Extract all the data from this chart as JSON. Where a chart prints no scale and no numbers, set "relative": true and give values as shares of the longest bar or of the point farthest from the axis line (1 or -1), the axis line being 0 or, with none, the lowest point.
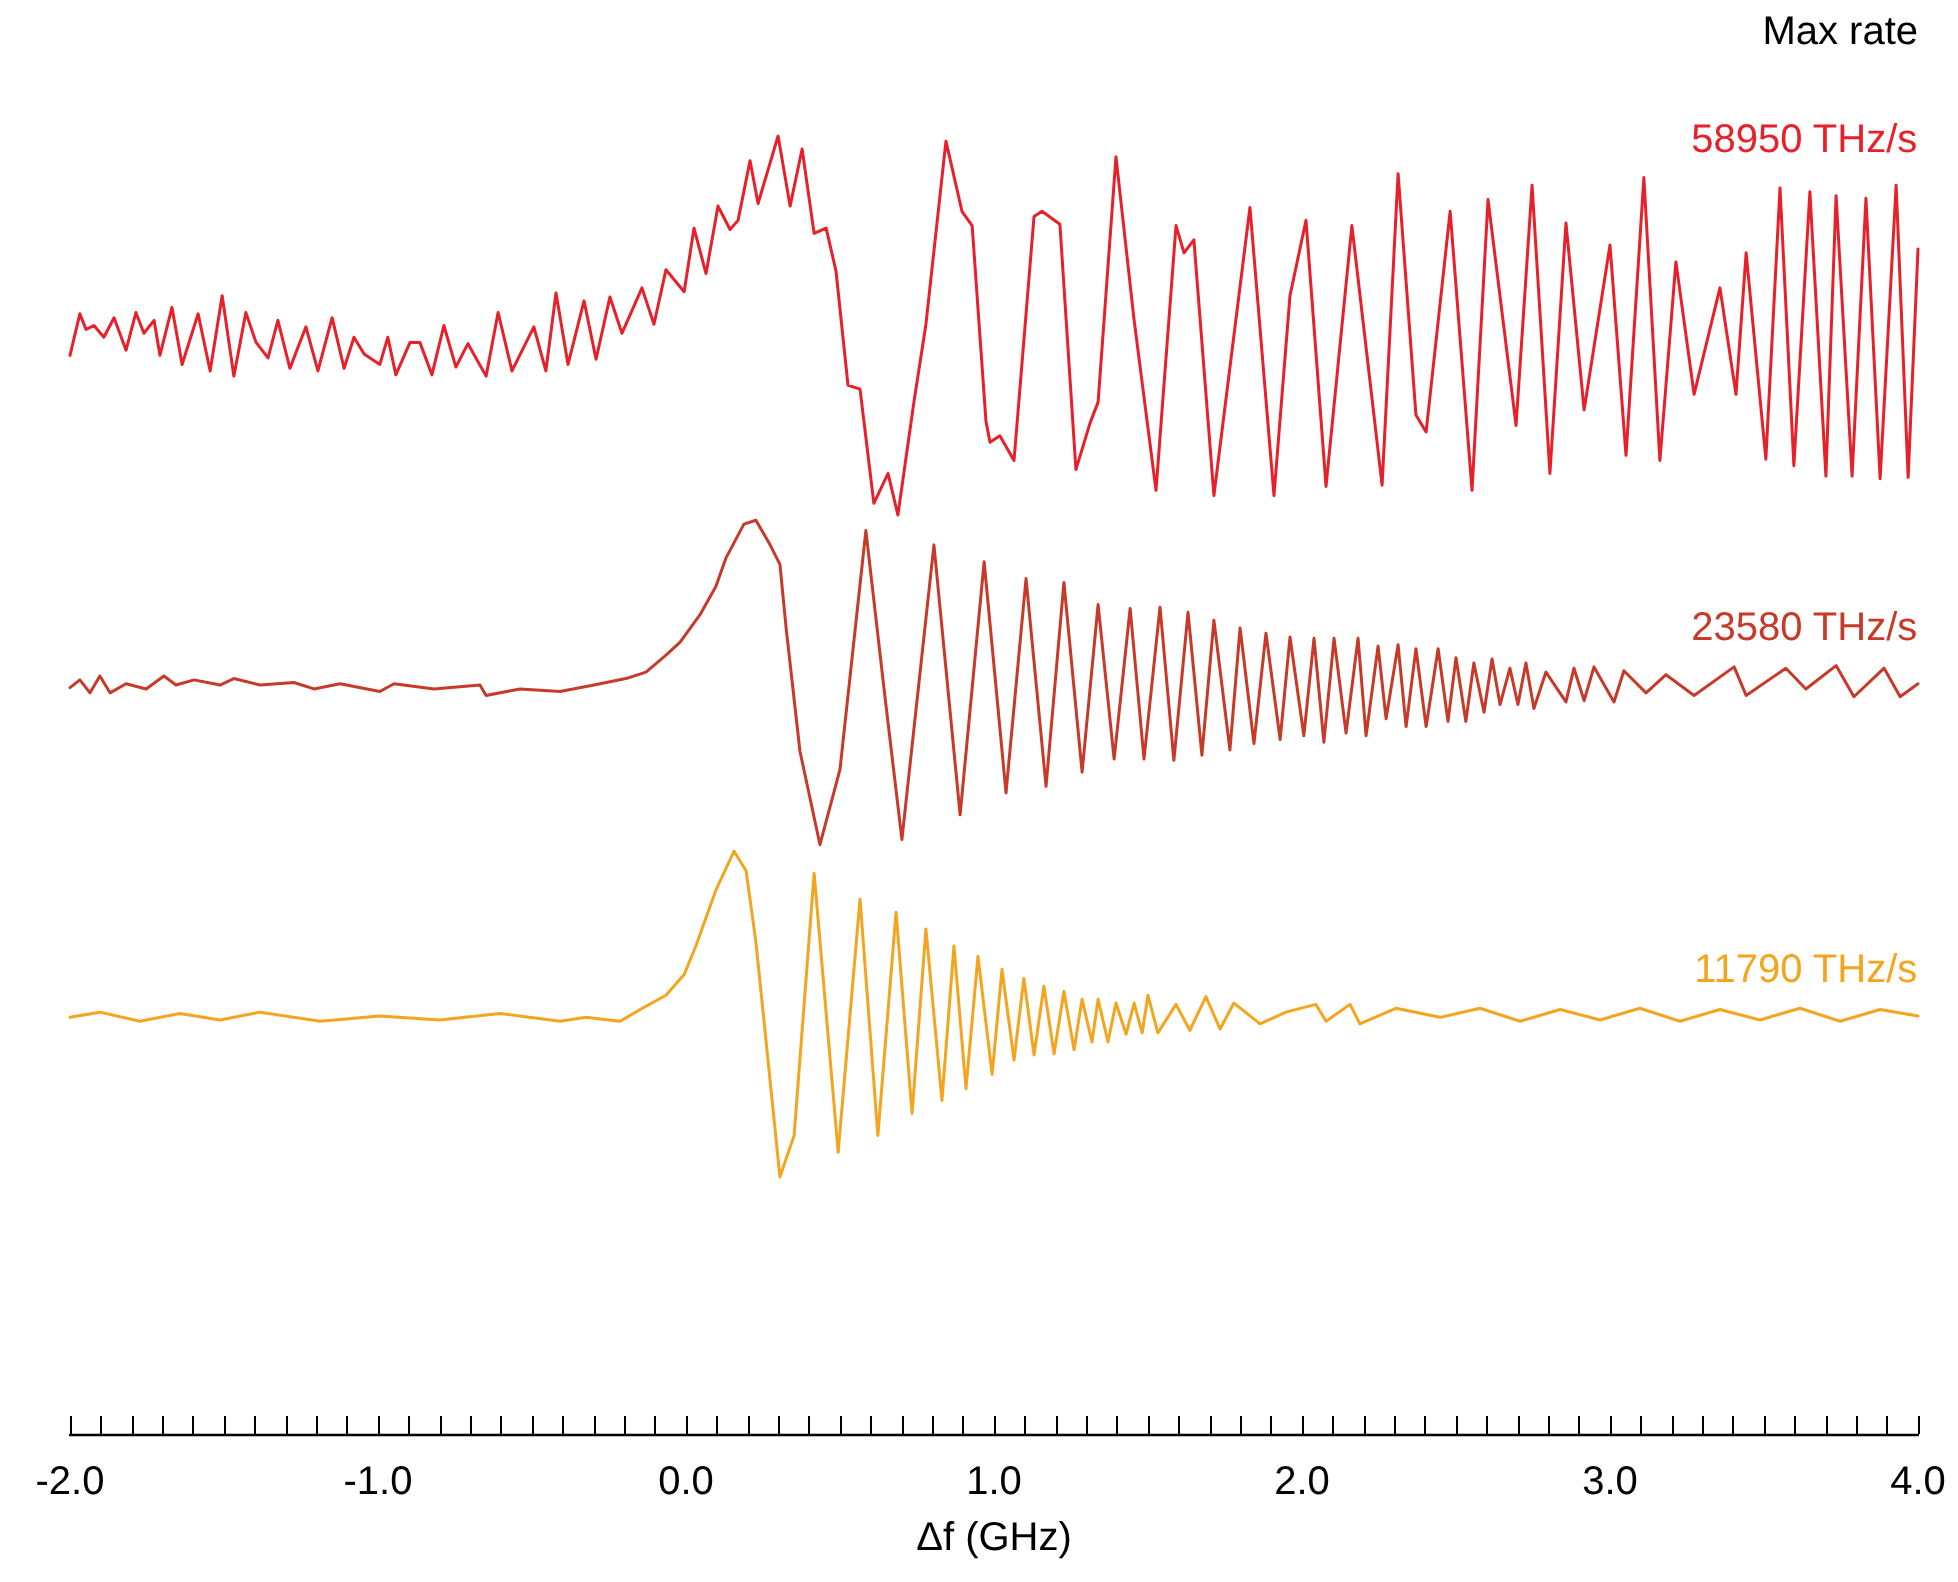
{
  "chart_data": {
    "type": "line",
    "relative": true,
    "xlabel": "Δf (GHz)",
    "legend_title": "Max rate",
    "legend": false,
    "grid": false,
    "marker": "none",
    "line_style": "solid",
    "tick_labels": "x",
    "xlim": [
      -2,
      4
    ],
    "xticks": [
      {
        "value": -2,
        "label": "-2.0"
      },
      {
        "value": -1.9,
        "label": null
      },
      {
        "value": -1.8,
        "label": null
      },
      {
        "value": -1.7,
        "label": null
      },
      {
        "value": -1.6,
        "label": null
      },
      {
        "value": -1.5,
        "label": null
      },
      {
        "value": -1.4,
        "label": null
      },
      {
        "value": -1.3,
        "label": null
      },
      {
        "value": -1.2,
        "label": null
      },
      {
        "value": -1.1,
        "label": null
      },
      {
        "value": -1,
        "label": "-1.0"
      },
      {
        "value": -0.9,
        "label": null
      },
      {
        "value": -0.8,
        "label": null
      },
      {
        "value": -0.7,
        "label": null
      },
      {
        "value": -0.6,
        "label": null
      },
      {
        "value": -0.5,
        "label": null
      },
      {
        "value": -0.4,
        "label": null
      },
      {
        "value": -0.3,
        "label": null
      },
      {
        "value": -0.2,
        "label": null
      },
      {
        "value": -0.1,
        "label": null
      },
      {
        "value": 0,
        "label": "0.0"
      },
      {
        "value": 0.1,
        "label": null
      },
      {
        "value": 0.2,
        "label": null
      },
      {
        "value": 0.3,
        "label": null
      },
      {
        "value": 0.4,
        "label": null
      },
      {
        "value": 0.5,
        "label": null
      },
      {
        "value": 0.6,
        "label": null
      },
      {
        "value": 0.7,
        "label": null
      },
      {
        "value": 0.8,
        "label": null
      },
      {
        "value": 0.9,
        "label": null
      },
      {
        "value": 1,
        "label": "1.0"
      },
      {
        "value": 1.1,
        "label": null
      },
      {
        "value": 1.2,
        "label": null
      },
      {
        "value": 1.3,
        "label": null
      },
      {
        "value": 1.4,
        "label": null
      },
      {
        "value": 1.5,
        "label": null
      },
      {
        "value": 1.6,
        "label": null
      },
      {
        "value": 1.7,
        "label": null
      },
      {
        "value": 1.8,
        "label": null
      },
      {
        "value": 1.9,
        "label": null
      },
      {
        "value": 2,
        "label": "2.0"
      },
      {
        "value": 2.1,
        "label": null
      },
      {
        "value": 2.2,
        "label": null
      },
      {
        "value": 2.3,
        "label": null
      },
      {
        "value": 2.4,
        "label": null
      },
      {
        "value": 2.5,
        "label": null
      },
      {
        "value": 2.6,
        "label": null
      },
      {
        "value": 2.7,
        "label": null
      },
      {
        "value": 2.8,
        "label": null
      },
      {
        "value": 2.9,
        "label": null
      },
      {
        "value": 3,
        "label": "3.0"
      },
      {
        "value": 3.1,
        "label": null
      },
      {
        "value": 3.2,
        "label": null
      },
      {
        "value": 3.3,
        "label": null
      },
      {
        "value": 3.4,
        "label": null
      },
      {
        "value": 3.5,
        "label": null
      },
      {
        "value": 3.6,
        "label": null
      },
      {
        "value": 3.7,
        "label": null
      },
      {
        "value": 3.8,
        "label": null
      },
      {
        "value": 3.9,
        "label": null
      },
      {
        "value": 4,
        "label": "4.0"
      }
    ],
    "series": [
      {
        "name": "58950 THz/s",
        "color": "#e8202a",
        "x": [
          -2.0,
          -1.968,
          -1.948,
          -1.922,
          -1.89,
          -1.857,
          -1.818,
          -1.786,
          -1.76,
          -1.727,
          -1.708,
          -1.669,
          -1.636,
          -1.584,
          -1.545,
          -1.506,
          -1.468,
          -1.429,
          -1.396,
          -1.357,
          -1.325,
          -1.286,
          -1.234,
          -1.195,
          -1.149,
          -1.11,
          -1.078,
          -1.045,
          -0.994,
          -0.968,
          -0.942,
          -0.896,
          -0.864,
          -0.825,
          -0.786,
          -0.747,
          -0.708,
          -0.649,
          -0.61,
          -0.565,
          -0.494,
          -0.455,
          -0.422,
          -0.383,
          -0.331,
          -0.292,
          -0.247,
          -0.208,
          -0.143,
          -0.104,
          -0.065,
          -0.006,
          0.026,
          0.065,
          0.104,
          0.143,
          0.169,
          0.208,
          0.234,
          0.299,
          0.338,
          0.377,
          0.416,
          0.455,
          0.487,
          0.526,
          0.565,
          0.61,
          0.656,
          0.688,
          0.74,
          0.779,
          0.844,
          0.896,
          0.929,
          0.974,
          0.987,
          1.019,
          1.065,
          1.13,
          1.156,
          1.214,
          1.266,
          1.312,
          1.338,
          1.396,
          1.455,
          1.526,
          1.591,
          1.617,
          1.649,
          1.714,
          1.831,
          1.909,
          1.961,
          2.013,
          2.078,
          2.162,
          2.26,
          2.312,
          2.37,
          2.403,
          2.481,
          2.552,
          2.604,
          2.695,
          2.747,
          2.805,
          2.857,
          2.916,
          3.0,
          3.052,
          3.11,
          3.162,
          3.214,
          3.273,
          3.357,
          3.409,
          3.442,
          3.506,
          3.552,
          3.597,
          3.649,
          3.701,
          3.734,
          3.786,
          3.831,
          3.877,
          3.929,
          3.968,
          4.0
        ],
        "values": [
          0.831,
          0.863,
          0.851,
          0.854,
          0.845,
          0.86,
          0.835,
          0.864,
          0.848,
          0.858,
          0.831,
          0.868,
          0.824,
          0.863,
          0.819,
          0.877,
          0.815,
          0.864,
          0.841,
          0.829,
          0.858,
          0.821,
          0.853,
          0.819,
          0.86,
          0.821,
          0.845,
          0.832,
          0.824,
          0.845,
          0.816,
          0.841,
          0.841,
          0.816,
          0.854,
          0.822,
          0.84,
          0.815,
          0.864,
          0.819,
          0.853,
          0.819,
          0.879,
          0.824,
          0.873,
          0.828,
          0.876,
          0.848,
          0.883,
          0.855,
          0.897,
          0.88,
          0.929,
          0.894,
          0.946,
          0.928,
          0.935,
          0.981,
          0.948,
          1,
          0.946,
          0.99,
          0.925,
          0.929,
          0.896,
          0.808,
          0.805,
          0.717,
          0.74,
          0.708,
          0.795,
          0.855,
          0.996,
          0.942,
          0.931,
          0.78,
          0.764,
          0.769,
          0.75,
          0.938,
          0.942,
          0.932,
          0.743,
          0.779,
          0.795,
          0.984,
          0.858,
          0.727,
          0.931,
          0.91,
          0.92,
          0.723,
          0.945,
          0.723,
          0.877,
          0.935,
          0.73,
          0.931,
          0.731,
          0.971,
          0.785,
          0.772,
          0.942,
          0.727,
          0.951,
          0.777,
          0.962,
          0.74,
          0.933,
          0.789,
          0.916,
          0.754,
          0.968,
          0.75,
          0.903,
          0.801,
          0.883,
          0.801,
          0.91,
          0.751,
          0.96,
          0.746,
          0.957,
          0.738,
          0.954,
          0.738,
          0.952,
          0.736,
          0.962,
          0.737,
          0.913
        ]
      },
      {
        "name": "23580 THz/s",
        "color": "#c73a2a",
        "x": [
          -2.0,
          -1.968,
          -1.935,
          -1.903,
          -1.87,
          -1.818,
          -1.753,
          -1.695,
          -1.656,
          -1.597,
          -1.513,
          -1.468,
          -1.383,
          -1.273,
          -1.208,
          -1.123,
          -0.994,
          -0.948,
          -0.818,
          -0.669,
          -0.649,
          -0.539,
          -0.409,
          -0.299,
          -0.195,
          -0.13,
          -0.065,
          -0.019,
          0.045,
          0.097,
          0.13,
          0.188,
          0.227,
          0.273,
          0.305,
          0.325,
          0.37,
          0.435,
          0.5,
          0.584,
          0.643,
          0.701,
          0.805,
          0.89,
          0.968,
          1.039,
          1.104,
          1.169,
          1.227,
          1.286,
          1.338,
          1.39,
          1.442,
          1.487,
          1.539,
          1.584,
          1.63,
          1.675,
          1.714,
          1.766,
          1.799,
          1.844,
          1.883,
          1.929,
          1.961,
          2.006,
          2.039,
          2.071,
          2.104,
          2.143,
          2.182,
          2.208,
          2.247,
          2.273,
          2.312,
          2.338,
          2.37,
          2.403,
          2.442,
          2.474,
          2.5,
          2.532,
          2.558,
          2.591,
          2.617,
          2.643,
          2.675,
          2.701,
          2.727,
          2.753,
          2.792,
          2.857,
          2.883,
          2.916,
          2.948,
          3.013,
          3.045,
          3.117,
          3.182,
          3.273,
          3.403,
          3.442,
          3.571,
          3.636,
          3.734,
          3.792,
          3.89,
          3.942,
          4.0
        ],
        "values": [
          0.575,
          0.581,
          0.571,
          0.584,
          0.571,
          0.578,
          0.574,
          0.584,
          0.577,
          0.581,
          0.577,
          0.582,
          0.577,
          0.579,
          0.574,
          0.578,
          0.572,
          0.578,
          0.574,
          0.577,
          0.569,
          0.574,
          0.572,
          0.577,
          0.582,
          0.587,
          0.6,
          0.61,
          0.631,
          0.653,
          0.675,
          0.701,
          0.704,
          0.685,
          0.67,
          0.621,
          0.526,
          0.454,
          0.512,
          0.696,
          0.574,
          0.458,
          0.685,
          0.477,
          0.672,
          0.494,
          0.659,
          0.499,
          0.656,
          0.51,
          0.639,
          0.52,
          0.636,
          0.52,
          0.637,
          0.519,
          0.633,
          0.523,
          0.627,
          0.527,
          0.621,
          0.532,
          0.617,
          0.535,
          0.614,
          0.538,
          0.613,
          0.533,
          0.613,
          0.54,
          0.613,
          0.538,
          0.607,
          0.551,
          0.608,
          0.545,
          0.605,
          0.545,
          0.605,
          0.549,
          0.598,
          0.549,
          0.594,
          0.556,
          0.597,
          0.562,
          0.59,
          0.562,
          0.594,
          0.559,
          0.587,
          0.564,
          0.59,
          0.565,
          0.591,
          0.564,
          0.588,
          0.571,
          0.585,
          0.569,
          0.591,
          0.569,
          0.59,
          0.574,
          0.592,
          0.568,
          0.59,
          0.568,
          0.578
        ]
      },
      {
        "name": "11790 THz/s",
        "color": "#f4a51f",
        "x": [
          -2.0,
          -1.903,
          -1.773,
          -1.643,
          -1.513,
          -1.383,
          -1.188,
          -0.994,
          -0.799,
          -0.604,
          -0.409,
          -0.325,
          -0.214,
          -0.149,
          -0.065,
          -0.006,
          0.032,
          0.097,
          0.156,
          0.195,
          0.227,
          0.305,
          0.351,
          0.416,
          0.494,
          0.565,
          0.623,
          0.682,
          0.734,
          0.779,
          0.831,
          0.87,
          0.909,
          0.948,
          0.994,
          1.026,
          1.065,
          1.097,
          1.13,
          1.162,
          1.195,
          1.227,
          1.26,
          1.286,
          1.318,
          1.338,
          1.37,
          1.396,
          1.429,
          1.455,
          1.481,
          1.5,
          1.532,
          1.591,
          1.636,
          1.688,
          1.734,
          1.779,
          1.864,
          1.948,
          2.045,
          2.078,
          2.156,
          2.188,
          2.305,
          2.448,
          2.578,
          2.708,
          2.838,
          2.968,
          3.097,
          3.227,
          3.357,
          3.487,
          3.617,
          3.747,
          3.877,
          4.0
        ],
        "values": [
          0.321,
          0.325,
          0.318,
          0.324,
          0.319,
          0.325,
          0.318,
          0.322,
          0.319,
          0.324,
          0.318,
          0.321,
          0.318,
          0.327,
          0.338,
          0.354,
          0.376,
          0.419,
          0.449,
          0.434,
          0.379,
          0.198,
          0.23,
          0.432,
          0.217,
          0.412,
          0.23,
          0.402,
          0.247,
          0.389,
          0.257,
          0.376,
          0.266,
          0.368,
          0.277,
          0.358,
          0.288,
          0.351,
          0.292,
          0.345,
          0.293,
          0.341,
          0.296,
          0.335,
          0.302,
          0.335,
          0.302,
          0.332,
          0.308,
          0.332,
          0.309,
          0.338,
          0.309,
          0.331,
          0.311,
          0.337,
          0.312,
          0.332,
          0.316,
          0.325,
          0.331,
          0.318,
          0.331,
          0.316,
          0.328,
          0.321,
          0.328,
          0.318,
          0.327,
          0.319,
          0.328,
          0.318,
          0.327,
          0.319,
          0.328,
          0.318,
          0.327,
          0.322
        ]
      }
    ]
  }
}
